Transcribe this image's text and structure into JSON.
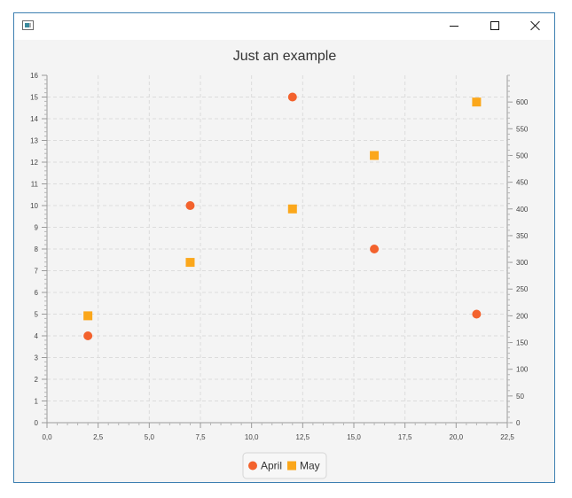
{
  "window": {
    "title": "",
    "icons": {
      "app": "app-window-icon",
      "minimize": "minimize-icon",
      "maximize": "maximize-icon",
      "close": "close-icon"
    }
  },
  "chart_data": {
    "type": "scatter",
    "title": "Just an example",
    "xlabel": "",
    "ylabel": "",
    "ylabel_right": "",
    "xlim": [
      0,
      22.5
    ],
    "ylim": [
      0,
      16
    ],
    "ylim_right": [
      0,
      650
    ],
    "x_ticks": [
      "0,0",
      "2,5",
      "5,0",
      "7,5",
      "10,0",
      "12,5",
      "15,0",
      "17,5",
      "20,0",
      "22,5"
    ],
    "y_ticks": [
      "0",
      "1",
      "2",
      "3",
      "4",
      "5",
      "6",
      "7",
      "8",
      "9",
      "10",
      "11",
      "12",
      "13",
      "14",
      "15",
      "16"
    ],
    "y_ticks_right": [
      "0",
      "50",
      "100",
      "150",
      "200",
      "250",
      "300",
      "350",
      "400",
      "450",
      "500",
      "550",
      "600"
    ],
    "grid": true,
    "legend_position": "bottom",
    "series": [
      {
        "name": "April",
        "axis": "left",
        "marker": "circle",
        "color": "#f3622d",
        "points": [
          [
            2,
            4
          ],
          [
            7,
            10
          ],
          [
            12,
            15
          ],
          [
            16,
            8
          ],
          [
            21,
            5
          ]
        ]
      },
      {
        "name": "May",
        "axis": "right",
        "marker": "square",
        "color": "#fba71b",
        "points": [
          [
            2,
            200
          ],
          [
            7,
            300
          ],
          [
            12,
            400
          ],
          [
            16,
            500
          ],
          [
            21,
            600
          ]
        ]
      }
    ]
  }
}
